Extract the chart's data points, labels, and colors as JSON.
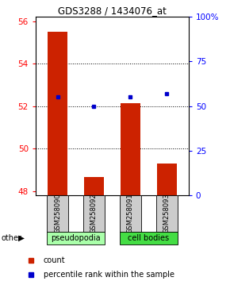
{
  "title": "GDS3288 / 1434076_at",
  "categories": [
    "GSM258090",
    "GSM258092",
    "GSM258091",
    "GSM258093"
  ],
  "bar_values": [
    55.5,
    48.65,
    52.15,
    49.3
  ],
  "dot_percentiles": [
    55,
    50,
    55,
    57
  ],
  "bar_color": "#cc2200",
  "dot_color": "#0000cc",
  "ylim": [
    47.8,
    56.2
  ],
  "y2lim": [
    0,
    100
  ],
  "yticks": [
    48,
    50,
    52,
    54,
    56
  ],
  "y2ticks": [
    0,
    25,
    50,
    75,
    100
  ],
  "y2ticklabels": [
    "0",
    "25",
    "50",
    "75",
    "100%"
  ],
  "groups": [
    {
      "label": "pseudopodia",
      "indices": [
        0,
        1
      ],
      "color": "#aaffaa"
    },
    {
      "label": "cell bodies",
      "indices": [
        2,
        3
      ],
      "color": "#44dd44"
    }
  ],
  "other_label": "other",
  "legend_count_label": "count",
  "legend_pct_label": "percentile rank within the sample",
  "bar_width": 0.55,
  "xlabel_area_color": "#cccccc",
  "gridline_yticks": [
    50,
    52,
    54
  ]
}
